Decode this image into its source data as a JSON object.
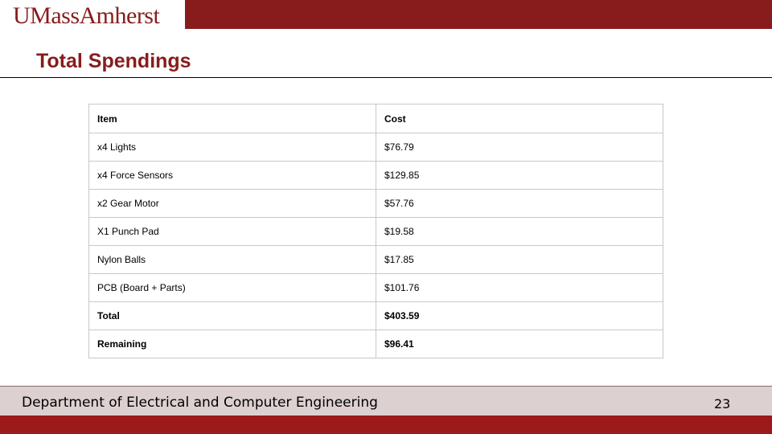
{
  "header": {
    "logo_text": "UMassAmherst",
    "brand_color": "#881c1c"
  },
  "slide": {
    "title": "Total Spendings"
  },
  "table": {
    "columns": [
      "Item",
      "Cost"
    ],
    "rows": [
      {
        "item": "x4 Lights",
        "cost": "$76.79"
      },
      {
        "item": "x4 Force Sensors",
        "cost": "$129.85"
      },
      {
        "item": "x2 Gear Motor",
        "cost": "$57.76"
      },
      {
        "item": "X1 Punch Pad",
        "cost": "$19.58"
      },
      {
        "item": "Nylon Balls",
        "cost": "$17.85"
      },
      {
        "item": "PCB (Board + Parts)",
        "cost": "$101.76"
      },
      {
        "item": "Total",
        "cost": "$403.59"
      },
      {
        "item": "Remaining",
        "cost": "$96.41"
      }
    ]
  },
  "footer": {
    "department": "Department of Electrical and Computer Engineering",
    "page_number": "23"
  }
}
